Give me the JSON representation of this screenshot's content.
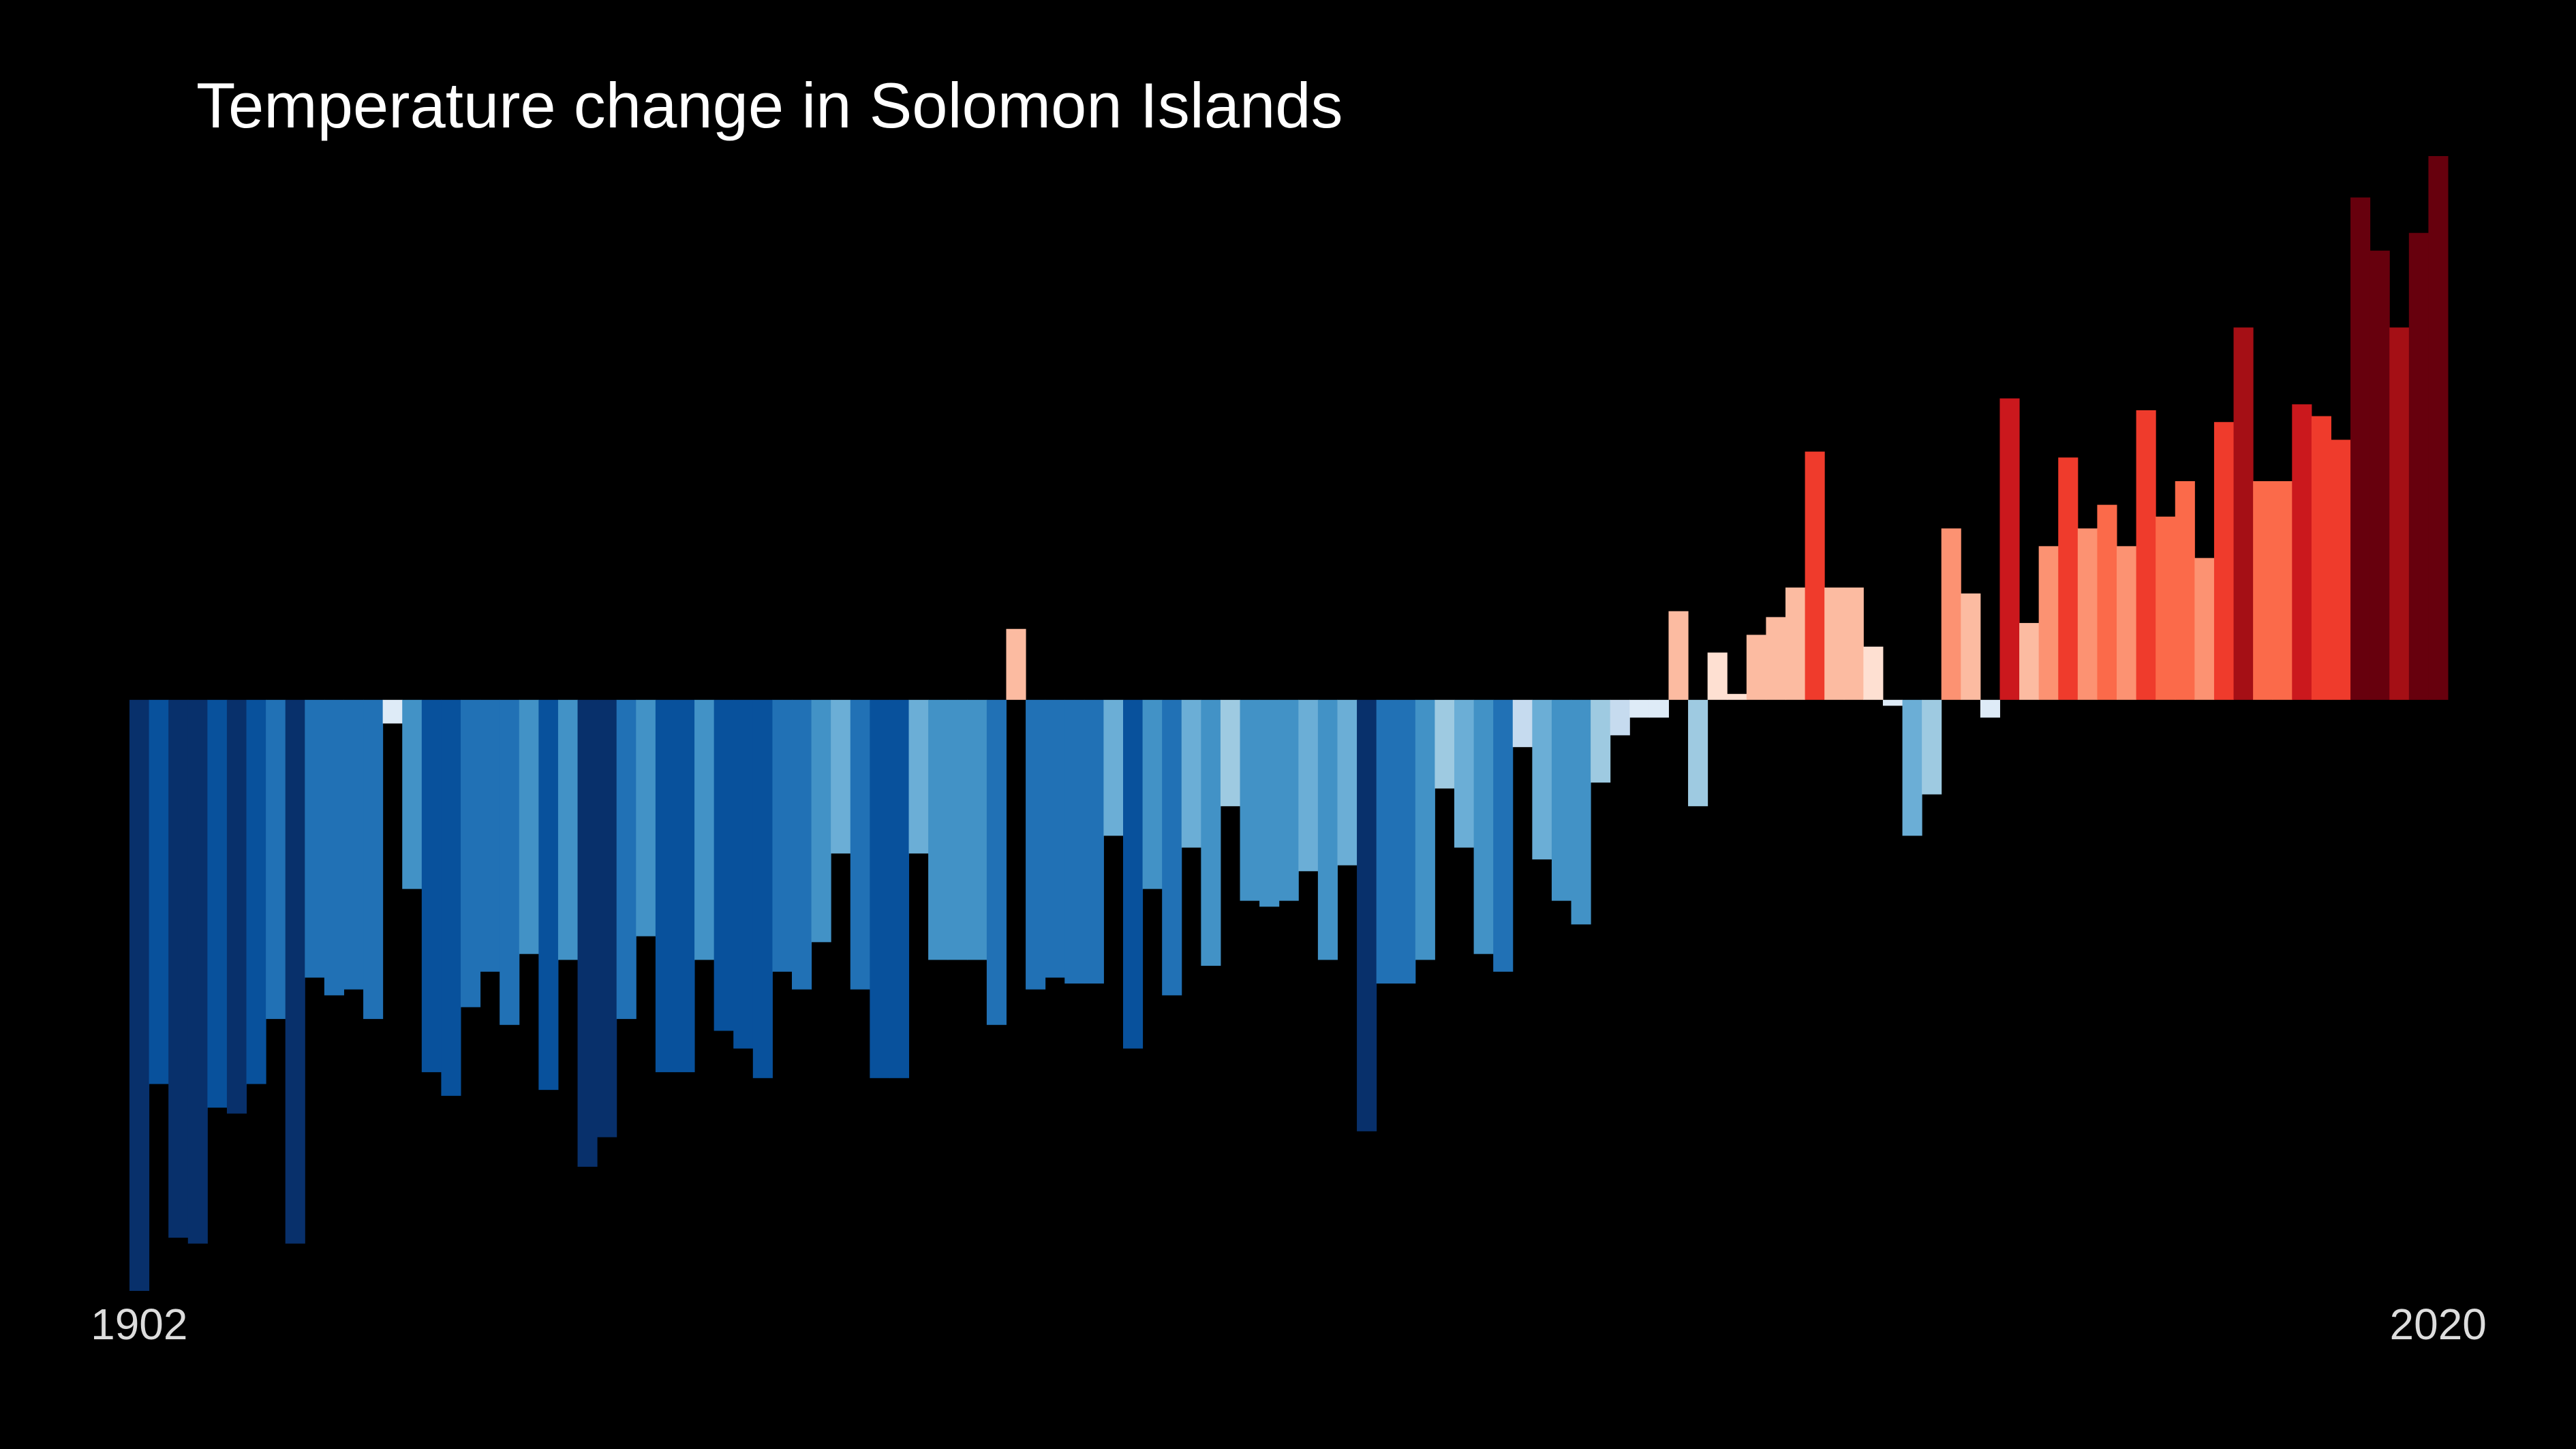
{
  "chart_data": {
    "type": "bar",
    "title": "Temperature change in Solomon Islands",
    "categories": [
      "1902",
      null,
      null,
      null,
      null,
      null,
      null,
      null,
      null,
      null,
      null,
      null,
      null,
      null,
      null,
      null,
      null,
      null,
      null,
      null,
      null,
      null,
      null,
      null,
      null,
      null,
      null,
      null,
      null,
      null,
      null,
      null,
      null,
      null,
      null,
      null,
      null,
      null,
      null,
      null,
      null,
      null,
      null,
      null,
      null,
      null,
      null,
      null,
      null,
      null,
      null,
      null,
      null,
      null,
      null,
      null,
      null,
      null,
      null,
      null,
      null,
      null,
      null,
      null,
      null,
      null,
      null,
      null,
      null,
      null,
      null,
      null,
      null,
      null,
      null,
      null,
      null,
      null,
      null,
      null,
      null,
      null,
      null,
      null,
      null,
      null,
      null,
      null,
      null,
      null,
      null,
      null,
      null,
      null,
      null,
      null,
      null,
      null,
      null,
      null,
      null,
      null,
      null,
      null,
      null,
      null,
      null,
      null,
      null,
      null,
      null,
      null,
      null,
      null,
      null,
      null,
      null,
      null,
      "2020"
    ],
    "values": [
      -1.0,
      -0.65,
      -0.91,
      -0.92,
      -0.69,
      -0.7,
      -0.65,
      -0.54,
      -0.92,
      -0.47,
      -0.5,
      -0.49,
      -0.54,
      -0.04,
      -0.32,
      -0.63,
      -0.67,
      -0.52,
      -0.46,
      -0.55,
      -0.43,
      -0.66,
      -0.44,
      -0.79,
      -0.74,
      -0.54,
      -0.4,
      -0.63,
      -0.63,
      -0.44,
      -0.56,
      -0.59,
      -0.64,
      -0.46,
      -0.49,
      -0.41,
      -0.26,
      -0.49,
      -0.64,
      -0.64,
      -0.26,
      -0.44,
      -0.44,
      -0.44,
      -0.55,
      0.12,
      -0.49,
      -0.47,
      -0.48,
      -0.48,
      -0.23,
      -0.59,
      -0.32,
      -0.5,
      -0.25,
      -0.45,
      -0.18,
      -0.34,
      -0.35,
      -0.34,
      -0.29,
      -0.44,
      -0.28,
      -0.73,
      -0.48,
      -0.48,
      -0.44,
      -0.15,
      -0.25,
      -0.43,
      -0.46,
      -0.08,
      -0.27,
      -0.34,
      -0.38,
      -0.14,
      -0.06,
      -0.03,
      -0.03,
      0.15,
      -0.18,
      0.08,
      0.01,
      0.11,
      0.14,
      0.19,
      0.42,
      0.19,
      0.19,
      0.09,
      -0.01,
      -0.23,
      -0.16,
      0.29,
      0.18,
      -0.03,
      0.51,
      0.13,
      0.26,
      0.41,
      0.29,
      0.33,
      0.26,
      0.49,
      0.31,
      0.37,
      0.24,
      0.47,
      0.63,
      0.37,
      0.37,
      0.5,
      0.48,
      0.44,
      0.85,
      0.76,
      0.63,
      0.79,
      0.92
    ],
    "colors": [
      "#08306b",
      "#08519c",
      "#08306b",
      "#08306b",
      "#08519c",
      "#08306b",
      "#08519c",
      "#2171b5",
      "#08306b",
      "#2171b5",
      "#2171b5",
      "#2171b5",
      "#2171b5",
      "#deebf7",
      "#4292c6",
      "#08519c",
      "#08519c",
      "#2171b5",
      "#2171b5",
      "#2171b5",
      "#4292c6",
      "#08519c",
      "#4292c6",
      "#08306b",
      "#08306b",
      "#2171b5",
      "#4292c6",
      "#08519c",
      "#08519c",
      "#4292c6",
      "#08519c",
      "#08519c",
      "#08519c",
      "#2171b5",
      "#2171b5",
      "#4292c6",
      "#6baed6",
      "#2171b5",
      "#08519c",
      "#08519c",
      "#6baed6",
      "#4292c6",
      "#4292c6",
      "#4292c6",
      "#2171b5",
      "#fcbba1",
      "#2171b5",
      "#2171b5",
      "#2171b5",
      "#2171b5",
      "#6baed6",
      "#08519c",
      "#4292c6",
      "#2171b5",
      "#6baed6",
      "#4292c6",
      "#9ecae1",
      "#4292c6",
      "#4292c6",
      "#4292c6",
      "#6baed6",
      "#4292c6",
      "#6baed6",
      "#08306b",
      "#2171b5",
      "#2171b5",
      "#4292c6",
      "#9ecae1",
      "#6baed6",
      "#4292c6",
      "#2171b5",
      "#c6dbef",
      "#6baed6",
      "#4292c6",
      "#4292c6",
      "#9ecae1",
      "#c6dbef",
      "#deebf7",
      "#deebf7",
      "#fcbba1",
      "#9ecae1",
      "#fee0d2",
      "#fee0d2",
      "#fcbba1",
      "#fcbba1",
      "#fcbba1",
      "#ef3b2c",
      "#fcbba1",
      "#fcbba1",
      "#fee0d2",
      "#deebf7",
      "#6baed6",
      "#9ecae1",
      "#fc9272",
      "#fcbba1",
      "#deebf7",
      "#cb181d",
      "#fcbba1",
      "#fc9272",
      "#ef3b2c",
      "#fc9272",
      "#fb6a4a",
      "#fc9272",
      "#ef3b2c",
      "#fb6a4a",
      "#fb6a4a",
      "#fc9272",
      "#ef3b2c",
      "#a50f15",
      "#fb6a4a",
      "#fb6a4a",
      "#cb181d",
      "#ef3b2c",
      "#ef3b2c",
      "#67000d",
      "#67000d",
      "#a50f15",
      "#67000d",
      "#67000d"
    ],
    "ylim": [
      -1.0,
      0.92
    ]
  }
}
